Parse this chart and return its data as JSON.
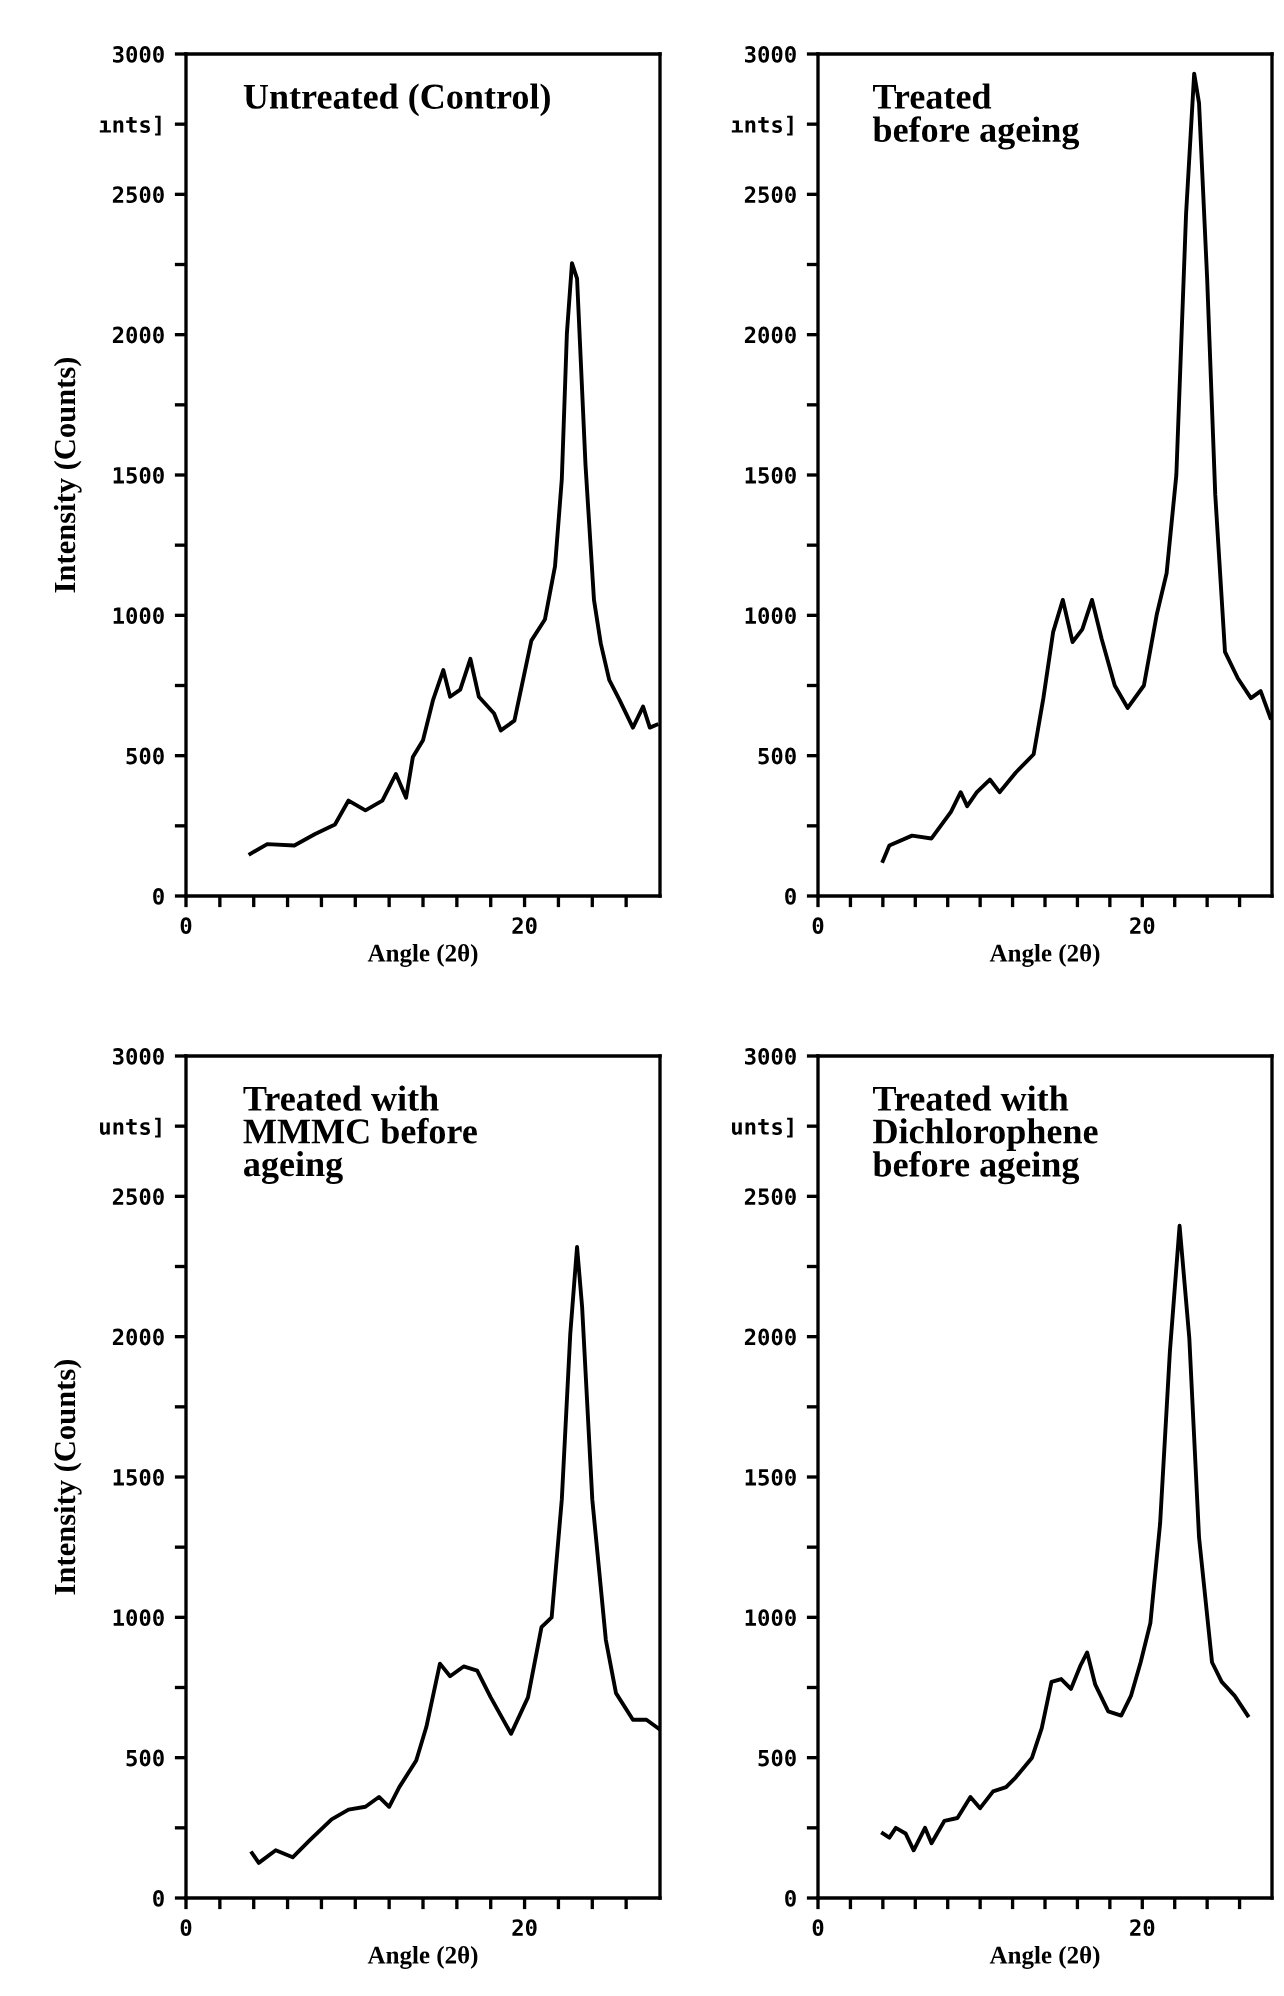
{
  "chart_data": [
    {
      "type": "line",
      "title": "Untreated (Control)",
      "xlabel": "Angle (2θ)",
      "ylabel": "Intensity (Counts)",
      "xlim": [
        0,
        28
      ],
      "ylim": [
        0,
        3000
      ],
      "xticks": [
        0,
        {
          "value": 2,
          "label": null
        },
        {
          "value": 4,
          "label": null
        },
        {
          "value": 6,
          "label": null
        },
        {
          "value": 8,
          "label": null
        },
        {
          "value": 10,
          "label": null
        },
        {
          "value": 12,
          "label": null
        },
        {
          "value": 14,
          "label": null
        },
        {
          "value": 16,
          "label": null
        },
        {
          "value": 18,
          "label": null
        },
        20,
        {
          "value": 22,
          "label": null
        },
        {
          "value": 24,
          "label": null
        },
        {
          "value": 26,
          "label": null
        }
      ],
      "yticks": [
        0,
        {
          "value": 250,
          "label": null
        },
        500,
        {
          "value": 750,
          "label": null
        },
        1000,
        {
          "value": 1250,
          "label": null
        },
        1500,
        {
          "value": 1750,
          "label": null
        },
        2000,
        {
          "value": 2250,
          "label": null
        },
        2500,
        {
          "value": 2750,
          "label": "ınts]"
        },
        3000
      ],
      "grid": false,
      "legend": false,
      "marker": "none",
      "line_style": "solid",
      "series": [
        {
          "color": "#000000",
          "x": [
            3.8,
            4.8,
            6.4,
            7.6,
            8.8,
            9.6,
            10.6,
            11.6,
            12.4,
            13,
            13.4,
            14,
            14.6,
            15.2,
            15.6,
            16.2,
            16.8,
            17.3,
            18.2,
            18.6,
            19.4,
            20.4,
            21.2,
            21.8,
            22.2,
            22.5,
            22.8,
            23.1,
            23.6,
            24.1,
            24.5,
            25,
            25.6,
            26.4,
            27,
            27.4,
            27.8
          ],
          "values": [
            150,
            185,
            180,
            220,
            255,
            340,
            305,
            340,
            435,
            350,
            495,
            555,
            700,
            805,
            710,
            735,
            845,
            710,
            650,
            590,
            625,
            910,
            985,
            1175,
            1485,
            2005,
            2255,
            2200,
            1535,
            1055,
            900,
            770,
            700,
            600,
            675,
            600,
            610
          ]
        }
      ]
    },
    {
      "type": "line",
      "title": "Treated\nbefore ageing",
      "xlabel": "Angle (2θ)",
      "xlim": [
        0,
        28
      ],
      "ylim": [
        0,
        3000
      ],
      "xticks": [
        0,
        {
          "value": 2,
          "label": null
        },
        {
          "value": 4,
          "label": null
        },
        {
          "value": 6,
          "label": null
        },
        {
          "value": 8,
          "label": null
        },
        {
          "value": 10,
          "label": null
        },
        {
          "value": 12,
          "label": null
        },
        {
          "value": 14,
          "label": null
        },
        {
          "value": 16,
          "label": null
        },
        {
          "value": 18,
          "label": null
        },
        20,
        {
          "value": 22,
          "label": null
        },
        {
          "value": 24,
          "label": null
        },
        {
          "value": 26,
          "label": null
        }
      ],
      "yticks": [
        0,
        {
          "value": 250,
          "label": null
        },
        500,
        {
          "value": 750,
          "label": null
        },
        1000,
        {
          "value": 1250,
          "label": null
        },
        1500,
        {
          "value": 1750,
          "label": null
        },
        2000,
        {
          "value": 2250,
          "label": null
        },
        2500,
        {
          "value": 2750,
          "label": "ınts]"
        },
        3000
      ],
      "grid": false,
      "legend": false,
      "marker": "none",
      "line_style": "solid",
      "series": [
        {
          "color": "#000000",
          "x": [
            4.0,
            4.4,
            5.8,
            7.0,
            8.2,
            8.8,
            9.2,
            9.8,
            10.6,
            11.2,
            12.2,
            13.3,
            13.9,
            14.5,
            15.1,
            15.7,
            16.3,
            16.9,
            17.5,
            18.3,
            19.1,
            20.1,
            20.9,
            21.5,
            22.1,
            22.7,
            23.2,
            23.5,
            24.0,
            24.5,
            25.1,
            25.9,
            26.7,
            27.3,
            27.9
          ],
          "values": [
            125,
            180,
            215,
            205,
            300,
            370,
            320,
            370,
            415,
            370,
            440,
            505,
            705,
            940,
            1055,
            905,
            950,
            1055,
            915,
            750,
            670,
            750,
            1005,
            1150,
            1500,
            2430,
            2930,
            2825,
            2200,
            1430,
            870,
            775,
            705,
            730,
            635
          ]
        }
      ]
    },
    {
      "type": "line",
      "title": "Treated with\nMMMC before\nageing",
      "xlabel": "Angle (2θ)",
      "ylabel": "Intensity (Counts)",
      "xlim": [
        0,
        28
      ],
      "ylim": [
        0,
        3000
      ],
      "xticks": [
        0,
        {
          "value": 2,
          "label": null
        },
        {
          "value": 4,
          "label": null
        },
        {
          "value": 6,
          "label": null
        },
        {
          "value": 8,
          "label": null
        },
        {
          "value": 10,
          "label": null
        },
        {
          "value": 12,
          "label": null
        },
        {
          "value": 14,
          "label": null
        },
        {
          "value": 16,
          "label": null
        },
        {
          "value": 18,
          "label": null
        },
        20,
        {
          "value": 22,
          "label": null
        },
        {
          "value": 24,
          "label": null
        },
        {
          "value": 26,
          "label": null
        }
      ],
      "yticks": [
        0,
        {
          "value": 250,
          "label": null
        },
        500,
        {
          "value": 750,
          "label": null
        },
        1000,
        {
          "value": 1250,
          "label": null
        },
        1500,
        {
          "value": 1750,
          "label": null
        },
        2000,
        {
          "value": 2250,
          "label": null
        },
        2500,
        {
          "value": 2750,
          "label": "unts]"
        },
        3000
      ],
      "grid": false,
      "legend": false,
      "marker": "none",
      "line_style": "solid",
      "series": [
        {
          "color": "#000000",
          "x": [
            3.9,
            4.3,
            5.3,
            6.3,
            7.3,
            8.6,
            9.6,
            10.6,
            11.4,
            12.0,
            12.6,
            13.6,
            14.2,
            15.0,
            15.6,
            16.4,
            17.2,
            18.0,
            19.2,
            20.2,
            21.0,
            21.6,
            22.2,
            22.7,
            23.1,
            23.4,
            24.0,
            24.8,
            25.4,
            26.4,
            27.2,
            28.0
          ],
          "values": [
            160,
            125,
            170,
            145,
            205,
            280,
            315,
            325,
            360,
            325,
            395,
            490,
            610,
            835,
            790,
            825,
            810,
            715,
            585,
            715,
            965,
            1000,
            1420,
            2010,
            2320,
            2105,
            1420,
            920,
            730,
            635,
            635,
            600
          ]
        }
      ]
    },
    {
      "type": "line",
      "title": "Treated with\nDichlorophene\nbefore ageing",
      "xlabel": "Angle (2θ)",
      "xlim": [
        0,
        28
      ],
      "ylim": [
        0,
        3000
      ],
      "xticks": [
        0,
        {
          "value": 2,
          "label": null
        },
        {
          "value": 4,
          "label": null
        },
        {
          "value": 6,
          "label": null
        },
        {
          "value": 8,
          "label": null
        },
        {
          "value": 10,
          "label": null
        },
        {
          "value": 12,
          "label": null
        },
        {
          "value": 14,
          "label": null
        },
        {
          "value": 16,
          "label": null
        },
        {
          "value": 18,
          "label": null
        },
        20,
        {
          "value": 22,
          "label": null
        },
        {
          "value": 24,
          "label": null
        },
        {
          "value": 26,
          "label": null
        }
      ],
      "yticks": [
        0,
        {
          "value": 250,
          "label": null
        },
        500,
        {
          "value": 750,
          "label": null
        },
        1000,
        {
          "value": 1250,
          "label": null
        },
        1500,
        {
          "value": 1750,
          "label": null
        },
        2000,
        {
          "value": 2250,
          "label": null
        },
        2500,
        {
          "value": 2750,
          "label": "unts]"
        },
        3000
      ],
      "grid": false,
      "legend": false,
      "marker": "none",
      "line_style": "solid",
      "series": [
        {
          "color": "#000000",
          "x": [
            4.0,
            4.4,
            4.8,
            5.4,
            5.9,
            6.6,
            7.0,
            7.8,
            8.6,
            9.4,
            10.0,
            10.8,
            11.6,
            12.2,
            13.2,
            13.8,
            14.4,
            15.0,
            15.6,
            16.2,
            16.6,
            17.1,
            17.9,
            18.7,
            19.3,
            19.9,
            20.5,
            21.1,
            21.7,
            22.3,
            22.9,
            23.5,
            24.3,
            24.9,
            25.7,
            26.5
          ],
          "values": [
            230,
            215,
            250,
            230,
            170,
            250,
            195,
            275,
            285,
            360,
            320,
            380,
            395,
            430,
            500,
            605,
            770,
            780,
            745,
            830,
            875,
            760,
            665,
            650,
            720,
            840,
            980,
            1335,
            1945,
            2395,
            1995,
            1285,
            840,
            770,
            720,
            650
          ]
        }
      ]
    }
  ]
}
